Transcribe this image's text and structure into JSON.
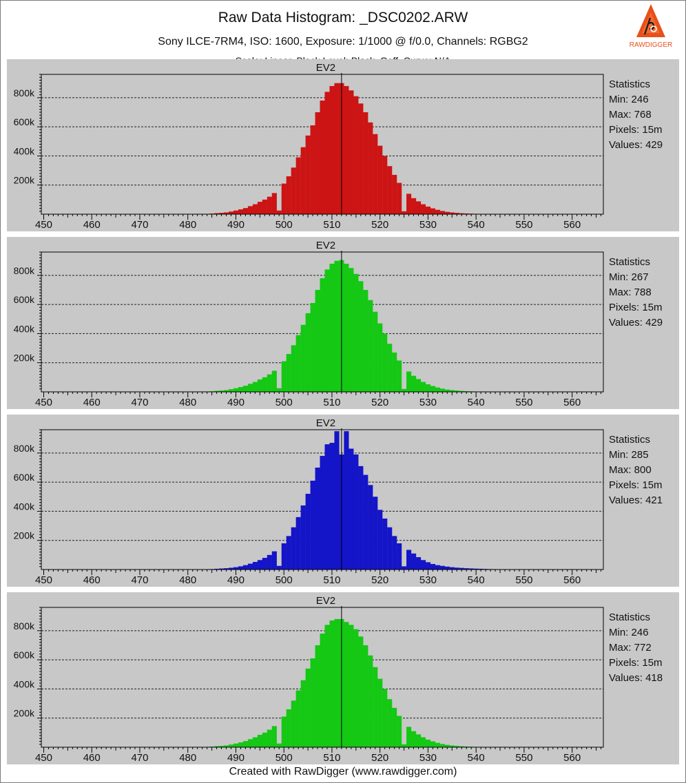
{
  "title": "Raw Data Histogram:  _DSC0202.ARW",
  "subtitle": "Sony ILCE-7RM4, ISO: 1600, Exposure: 1/1000 @ f/0.0, Channels: RGBG2",
  "subtitle2": "Scale: Linear, Black Level: Black, Gaff. Curve: N/A",
  "footer": "Created with RawDigger (www.rawdigger.com)",
  "logo": {
    "text": "RAWDIGGER",
    "color": "#e8501a"
  },
  "colors": {
    "background": "#c8c8c8",
    "red": "#cc1414",
    "green": "#14c814",
    "blue": "#1414c8"
  },
  "chart_data": [
    {
      "type": "bar",
      "channel": "R",
      "title": "EV2",
      "color": "#cc1414",
      "x_ticks": [
        450,
        460,
        470,
        480,
        490,
        500,
        510,
        520,
        530,
        540,
        550,
        560
      ],
      "y_ticks": [
        "200k",
        "400k",
        "600k",
        "800k"
      ],
      "xlim": [
        449.5,
        566.5
      ],
      "ylim": [
        0,
        960000
      ],
      "grid": true,
      "ev_marker": 512,
      "stats": {
        "heading": "Statistics",
        "lines": [
          "Min: 246",
          "Max: 768",
          "Pixels: 15m",
          "Values: 429"
        ]
      },
      "x": [
        484,
        485,
        486,
        487,
        488,
        489,
        490,
        491,
        492,
        493,
        494,
        495,
        496,
        497,
        498,
        499,
        500,
        501,
        502,
        503,
        504,
        505,
        506,
        507,
        508,
        509,
        510,
        511,
        512,
        513,
        514,
        515,
        516,
        517,
        518,
        519,
        520,
        521,
        522,
        523,
        524,
        525,
        526,
        527,
        528,
        529,
        530,
        531,
        532,
        533,
        534,
        535,
        536,
        537,
        538,
        539,
        540,
        541,
        542,
        543
      ],
      "values": [
        2000,
        4000,
        7000,
        9000,
        12000,
        18000,
        25000,
        33000,
        42000,
        55000,
        68000,
        85000,
        100000,
        120000,
        145000,
        25000,
        210000,
        260000,
        320000,
        390000,
        460000,
        540000,
        610000,
        700000,
        780000,
        840000,
        880000,
        900000,
        900000,
        880000,
        850000,
        810000,
        760000,
        700000,
        630000,
        550000,
        470000,
        400000,
        330000,
        270000,
        215000,
        20000,
        140000,
        110000,
        88000,
        68000,
        52000,
        40000,
        30000,
        22000,
        16000,
        12000,
        9000,
        6500,
        4800,
        3500,
        2500,
        1800,
        1200,
        800
      ]
    },
    {
      "type": "bar",
      "channel": "G",
      "title": "EV2",
      "color": "#14c814",
      "x_ticks": [
        450,
        460,
        470,
        480,
        490,
        500,
        510,
        520,
        530,
        540,
        550,
        560
      ],
      "y_ticks": [
        "200k",
        "400k",
        "600k",
        "800k"
      ],
      "xlim": [
        449.5,
        566.5
      ],
      "ylim": [
        0,
        960000
      ],
      "grid": true,
      "ev_marker": 512,
      "stats": {
        "heading": "Statistics",
        "lines": [
          "Min: 267",
          "Max: 788",
          "Pixels: 15m",
          "Values: 429"
        ]
      },
      "x": [
        484,
        485,
        486,
        487,
        488,
        489,
        490,
        491,
        492,
        493,
        494,
        495,
        496,
        497,
        498,
        499,
        500,
        501,
        502,
        503,
        504,
        505,
        506,
        507,
        508,
        509,
        510,
        511,
        512,
        513,
        514,
        515,
        516,
        517,
        518,
        519,
        520,
        521,
        522,
        523,
        524,
        525,
        526,
        527,
        528,
        529,
        530,
        531,
        532,
        533,
        534,
        535,
        536,
        537,
        538,
        539,
        540,
        541,
        542,
        543
      ],
      "values": [
        2000,
        4000,
        7000,
        9000,
        12000,
        18000,
        25000,
        33000,
        42000,
        55000,
        68000,
        85000,
        100000,
        120000,
        145000,
        25000,
        210000,
        260000,
        320000,
        390000,
        460000,
        540000,
        610000,
        700000,
        780000,
        840000,
        880000,
        900000,
        905000,
        880000,
        850000,
        810000,
        760000,
        700000,
        630000,
        550000,
        470000,
        400000,
        330000,
        270000,
        215000,
        20000,
        140000,
        110000,
        88000,
        68000,
        52000,
        40000,
        30000,
        22000,
        16000,
        12000,
        9000,
        6500,
        4800,
        3500,
        2500,
        1800,
        1200,
        800
      ]
    },
    {
      "type": "bar",
      "channel": "B",
      "title": "EV2",
      "color": "#1414c8",
      "x_ticks": [
        450,
        460,
        470,
        480,
        490,
        500,
        510,
        520,
        530,
        540,
        550,
        560
      ],
      "y_ticks": [
        "200k",
        "400k",
        "600k",
        "800k"
      ],
      "xlim": [
        449.5,
        566.5
      ],
      "ylim": [
        0,
        960000
      ],
      "grid": true,
      "ev_marker": 512,
      "stats": {
        "heading": "Statistics",
        "lines": [
          "Min: 285",
          "Max: 800",
          "Pixels: 15m",
          "Values: 421"
        ]
      },
      "x": [
        484,
        485,
        486,
        487,
        488,
        489,
        490,
        491,
        492,
        493,
        494,
        495,
        496,
        497,
        498,
        499,
        500,
        501,
        502,
        503,
        504,
        505,
        506,
        507,
        508,
        509,
        510,
        511,
        512,
        513,
        514,
        515,
        516,
        517,
        518,
        519,
        520,
        521,
        522,
        523,
        524,
        525,
        526,
        527,
        528,
        529,
        530,
        531,
        532,
        533,
        534,
        535,
        536,
        537,
        538,
        539,
        540,
        541,
        542,
        543,
        544,
        545
      ],
      "values": [
        1500,
        3000,
        5000,
        7000,
        9000,
        12000,
        16000,
        22000,
        30000,
        40000,
        52000,
        65000,
        80000,
        100000,
        125000,
        25000,
        180000,
        230000,
        290000,
        360000,
        440000,
        520000,
        610000,
        700000,
        780000,
        860000,
        870000,
        950000,
        790000,
        950000,
        830000,
        790000,
        710000,
        650000,
        580000,
        500000,
        410000,
        350000,
        290000,
        230000,
        180000,
        22000,
        135000,
        110000,
        85000,
        65000,
        50000,
        38000,
        30000,
        25000,
        20000,
        16000,
        13000,
        11000,
        9000,
        7500,
        6000,
        5000,
        4000,
        3000,
        2500,
        2000
      ]
    },
    {
      "type": "bar",
      "channel": "G2",
      "title": "EV2",
      "color": "#14c814",
      "x_ticks": [
        450,
        460,
        470,
        480,
        490,
        500,
        510,
        520,
        530,
        540,
        550,
        560
      ],
      "y_ticks": [
        "200k",
        "400k",
        "600k",
        "800k"
      ],
      "xlim": [
        449.5,
        566.5
      ],
      "ylim": [
        0,
        960000
      ],
      "grid": true,
      "ev_marker": 512,
      "stats": {
        "heading": "Statistics",
        "lines": [
          "Min: 246",
          "Max: 772",
          "Pixels: 15m",
          "Values: 418"
        ]
      },
      "x": [
        484,
        485,
        486,
        487,
        488,
        489,
        490,
        491,
        492,
        493,
        494,
        495,
        496,
        497,
        498,
        499,
        500,
        501,
        502,
        503,
        504,
        505,
        506,
        507,
        508,
        509,
        510,
        511,
        512,
        513,
        514,
        515,
        516,
        517,
        518,
        519,
        520,
        521,
        522,
        523,
        524,
        525,
        526,
        527,
        528,
        529,
        530,
        531,
        532,
        533,
        534,
        535,
        536,
        537,
        538,
        539,
        540,
        541,
        542,
        543
      ],
      "values": [
        2000,
        4000,
        7000,
        9000,
        12000,
        18000,
        25000,
        33000,
        42000,
        55000,
        68000,
        85000,
        100000,
        120000,
        145000,
        25000,
        210000,
        260000,
        320000,
        390000,
        460000,
        540000,
        610000,
        700000,
        780000,
        840000,
        870000,
        880000,
        880000,
        860000,
        840000,
        810000,
        760000,
        700000,
        630000,
        550000,
        470000,
        400000,
        330000,
        270000,
        215000,
        20000,
        140000,
        110000,
        88000,
        68000,
        52000,
        40000,
        30000,
        22000,
        16000,
        12000,
        9000,
        6500,
        4800,
        3500,
        2500,
        1800,
        1200,
        800
      ]
    }
  ]
}
